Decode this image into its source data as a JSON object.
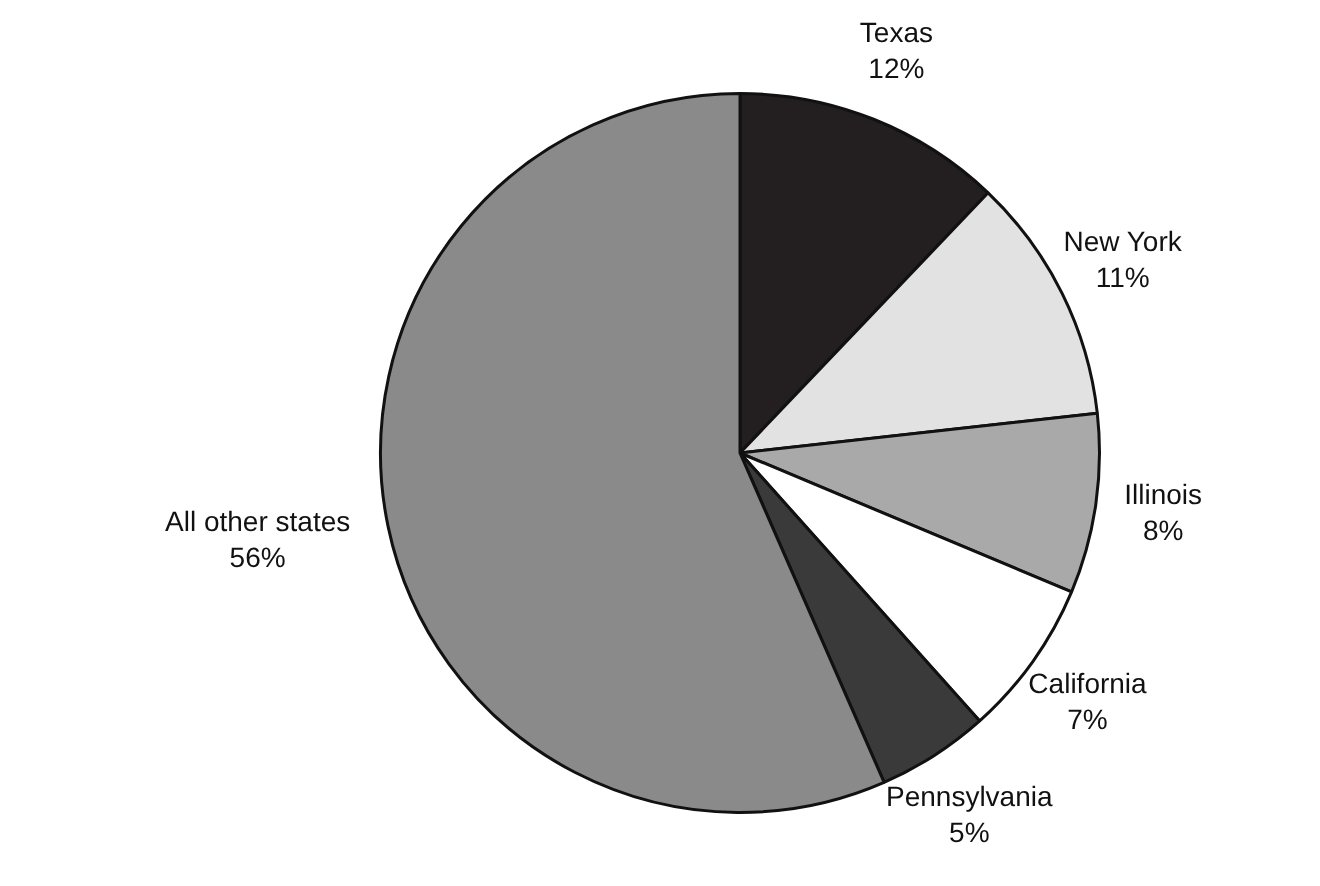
{
  "chart_data": {
    "type": "pie",
    "categories": [
      "Texas",
      "New York",
      "Illinois",
      "California",
      "Pennsylvania",
      "All other states"
    ],
    "values": [
      12,
      11,
      8,
      7,
      5,
      56
    ],
    "value_labels": [
      "12%",
      "11%",
      "8%",
      "7%",
      "5%",
      "56%"
    ],
    "colors": [
      "#231f20",
      "#e2e2e2",
      "#a9a9a9",
      "#ffffff",
      "#3a3a3a",
      "#8a8a8a"
    ],
    "legend": false
  }
}
